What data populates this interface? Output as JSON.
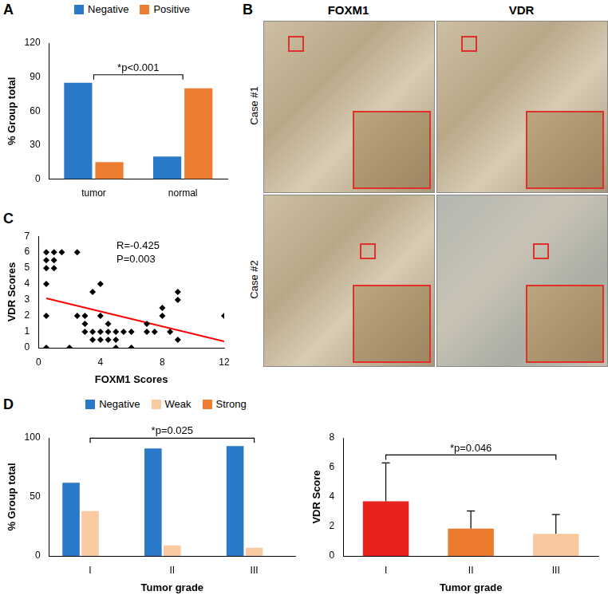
{
  "chart_data": [
    {
      "label": "A",
      "type": "bar",
      "categories": [
        "tumor",
        "normal"
      ],
      "series": [
        {
          "name": "Negative",
          "color": "#2a78c8",
          "values": [
            85,
            20
          ]
        },
        {
          "name": "Positive",
          "color": "#ed7d31",
          "values": [
            15,
            80
          ]
        }
      ],
      "ylabel": "% Group total",
      "ylim": [
        0,
        120
      ],
      "yticks": [
        0,
        30,
        60,
        90,
        120
      ],
      "legend": "top",
      "grid": false,
      "annotations": [
        {
          "text": "*p<0.001",
          "from": "tumor",
          "to": "normal"
        }
      ]
    },
    {
      "label": "C",
      "type": "scatter",
      "x": [
        0.5,
        0.5,
        0.5,
        0.5,
        0.5,
        0.5,
        1,
        1,
        1,
        1.5,
        2.5,
        2,
        3,
        3.5,
        4,
        3,
        3.5,
        4,
        4.5,
        5,
        3.5,
        4,
        4.5,
        5,
        3,
        4,
        4.5,
        5,
        2.5,
        6,
        6,
        7,
        7,
        8,
        8,
        8.5,
        9,
        9,
        9,
        12,
        5.5,
        7.5
      ],
      "values": [
        6,
        5.5,
        5,
        4,
        2,
        0,
        6,
        5.5,
        5,
        6,
        6,
        0,
        2,
        3.5,
        4,
        1,
        1,
        1,
        1,
        1,
        0.5,
        0.5,
        0.5,
        0.5,
        1.5,
        2,
        1.5,
        0,
        2,
        1,
        0,
        1.5,
        1,
        2.5,
        2,
        1,
        3.5,
        3,
        0.5,
        2,
        1,
        1
      ],
      "color": "#000000",
      "marker": "diamond",
      "trend_line": {
        "x": [
          0.5,
          12
        ],
        "values": [
          3.1,
          0.4
        ],
        "color": "#ff0000"
      },
      "xlabel": "FOXM1 Scores",
      "ylabel": "VDR Scores",
      "xlim": [
        0,
        12
      ],
      "xticks": [
        0,
        4,
        8,
        12
      ],
      "ylim": [
        0,
        7
      ],
      "yticks": [
        0,
        1,
        2,
        3,
        4,
        5,
        6,
        7
      ],
      "grid": false,
      "annotations": [
        {
          "text": "R=-0.425"
        },
        {
          "text": "P=0.003"
        }
      ]
    },
    {
      "label": "D",
      "type": "bar",
      "categories": [
        "I",
        "II",
        "III"
      ],
      "series": [
        {
          "name": "Negative",
          "color": "#2a78c8",
          "values": [
            62,
            91,
            93
          ]
        },
        {
          "name": "Weak",
          "color": "#f9c9a2",
          "values": [
            38,
            9,
            7
          ]
        },
        {
          "name": "Strong",
          "color": "#ee7d31",
          "values": [
            0,
            0,
            0
          ]
        }
      ],
      "xlabel": "Tumor grade",
      "ylabel": "% Group total",
      "ylim": [
        0,
        100
      ],
      "yticks": [
        0,
        50,
        100
      ],
      "legend": "top",
      "grid": false,
      "annotations": [
        {
          "text": "*p=0.025",
          "from": "I",
          "to": "III"
        }
      ]
    },
    {
      "type": "bar",
      "categories": [
        "I",
        "II",
        "III"
      ],
      "values": [
        3.7,
        1.85,
        1.5
      ],
      "errors": [
        2.6,
        1.2,
        1.3
      ],
      "colors": [
        "#e8231e",
        "#ec7a2c",
        "#f8c9a0"
      ],
      "xlabel": "Tumor grade",
      "ylabel": "VDR Score",
      "ylim": [
        0,
        8
      ],
      "yticks": [
        0,
        2,
        4,
        6,
        8
      ],
      "grid": false,
      "annotations": [
        {
          "text": "*p=0.046",
          "from": "I",
          "to": "III"
        }
      ]
    }
  ],
  "image_panel": {
    "label": "B",
    "columns": [
      "FOXM1",
      "VDR"
    ],
    "rows": [
      "Case #1",
      "Case #2"
    ]
  }
}
